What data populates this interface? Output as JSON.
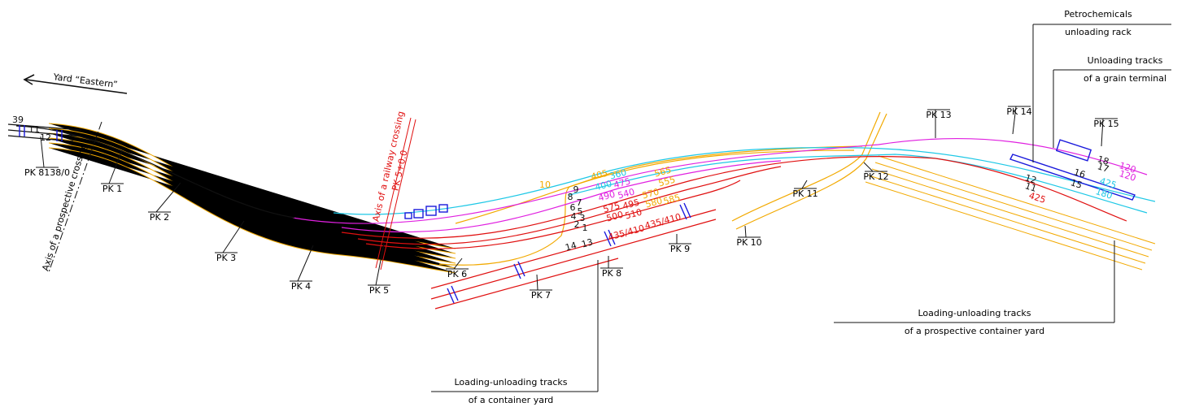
{
  "header": {
    "yard": "Yard “Eastern”"
  },
  "axes": {
    "prospective_crossing": "Axis of a prospective crossing",
    "railway_crossing": "Axis of a railway crossing",
    "railway_crossing_pk": "PK 5+0.0"
  },
  "pickets": [
    "PK 8138/0",
    "PK 1",
    "PK 2",
    "PK 3",
    "PK 4",
    "PK 5",
    "PK 6",
    "PK 7",
    "PK 8",
    "PK 9",
    "PK 10",
    "PK 11",
    "PK 12",
    "PK 13",
    "PK 14",
    "PK 15"
  ],
  "callouts": [
    {
      "lines": [
        "Petrochemicals",
        "unloading rack"
      ]
    },
    {
      "lines": [
        "Unloading tracks",
        "of a grain terminal"
      ]
    },
    {
      "lines": [
        "Loading-unloading tracks",
        "of a prospective container yard"
      ]
    },
    {
      "lines": [
        "Loading-unloading tracks",
        "of a container yard"
      ]
    }
  ],
  "track_labels": [
    "39",
    "11",
    "12",
    "10",
    "9",
    "8",
    "7",
    "6",
    "5",
    "4",
    "3",
    "2",
    "1",
    "14",
    "13",
    "405",
    "360",
    "400",
    "475",
    "490",
    "540",
    "575",
    "495",
    "500",
    "510",
    "435/410",
    "435/410",
    "565",
    "555",
    "570",
    "580",
    "585",
    "18",
    "17",
    "16",
    "15",
    "12",
    "11",
    "120",
    "120",
    "425",
    "180",
    "425"
  ]
}
